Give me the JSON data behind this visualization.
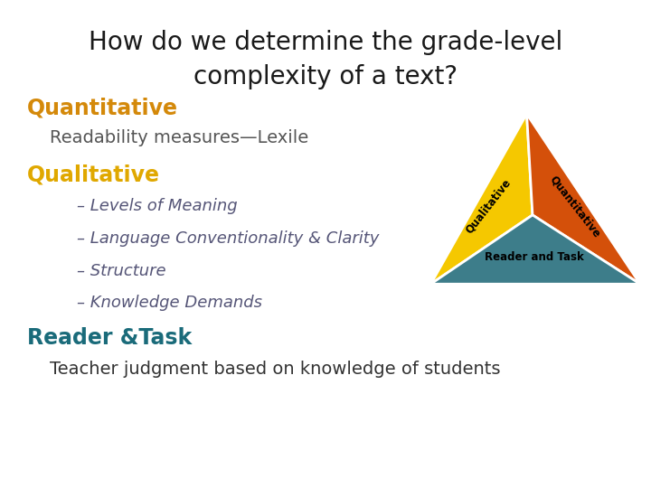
{
  "title_line1": "How do we determine the grade-level",
  "title_line2": "complexity of a text?",
  "title_fontsize": 20,
  "title_color": "#1a1a1a",
  "bg_color": "#ffffff",
  "quantitative_label": "Quantitative",
  "quantitative_color": "#d4890a",
  "readability_text": "Readability measures—Lexile",
  "readability_color": "#555555",
  "qualitative_label": "Qualitative",
  "qualitative_color": "#e0a800",
  "bullets": [
    "– Levels of Meaning",
    "– Language Conventionality & Clarity",
    "– Structure",
    "– Knowledge Demands"
  ],
  "bullet_color": "#555577",
  "reader_task_label": "Reader &Task",
  "reader_task_color": "#1a6b7a",
  "teacher_text": "Teacher judgment based on knowledge of students",
  "teacher_color": "#333333",
  "tri_yellow_color": "#f5c800",
  "tri_orange_color": "#d4500a",
  "tri_teal_color": "#3d7d8a",
  "tri_qual_label": "Qualitative",
  "tri_quant_label": "Quantitative",
  "tri_reader_label": "Reader and Task"
}
